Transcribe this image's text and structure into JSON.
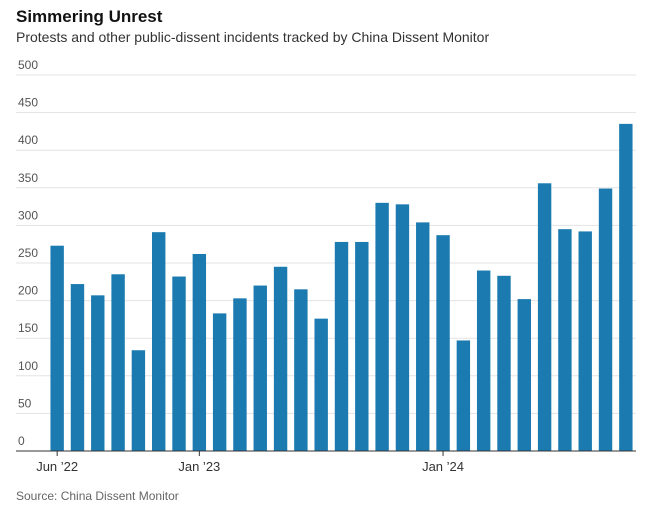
{
  "chart_data": {
    "type": "bar",
    "title": "Simmering Unrest",
    "subtitle": "Protests and other public-dissent incidents tracked by China Dissent Monitor",
    "source": "Source: China Dissent Monitor",
    "categories": [
      "Jun ’22",
      null,
      null,
      null,
      null,
      null,
      null,
      "Jan ’23",
      null,
      null,
      null,
      null,
      null,
      null,
      null,
      null,
      null,
      null,
      null,
      "Jan ’24",
      null,
      null,
      null,
      null,
      null,
      null,
      null,
      null,
      null
    ],
    "values": [
      273,
      222,
      207,
      235,
      134,
      291,
      232,
      262,
      183,
      203,
      220,
      245,
      215,
      176,
      278,
      278,
      330,
      328,
      304,
      287,
      147,
      240,
      233,
      202,
      356,
      295,
      292,
      349,
      435
    ],
    "color": "#1b7bb0",
    "ylim": [
      0,
      500
    ],
    "yticks": [
      0,
      50,
      100,
      150,
      200,
      250,
      300,
      350,
      400,
      450,
      500
    ],
    "grid": true
  }
}
